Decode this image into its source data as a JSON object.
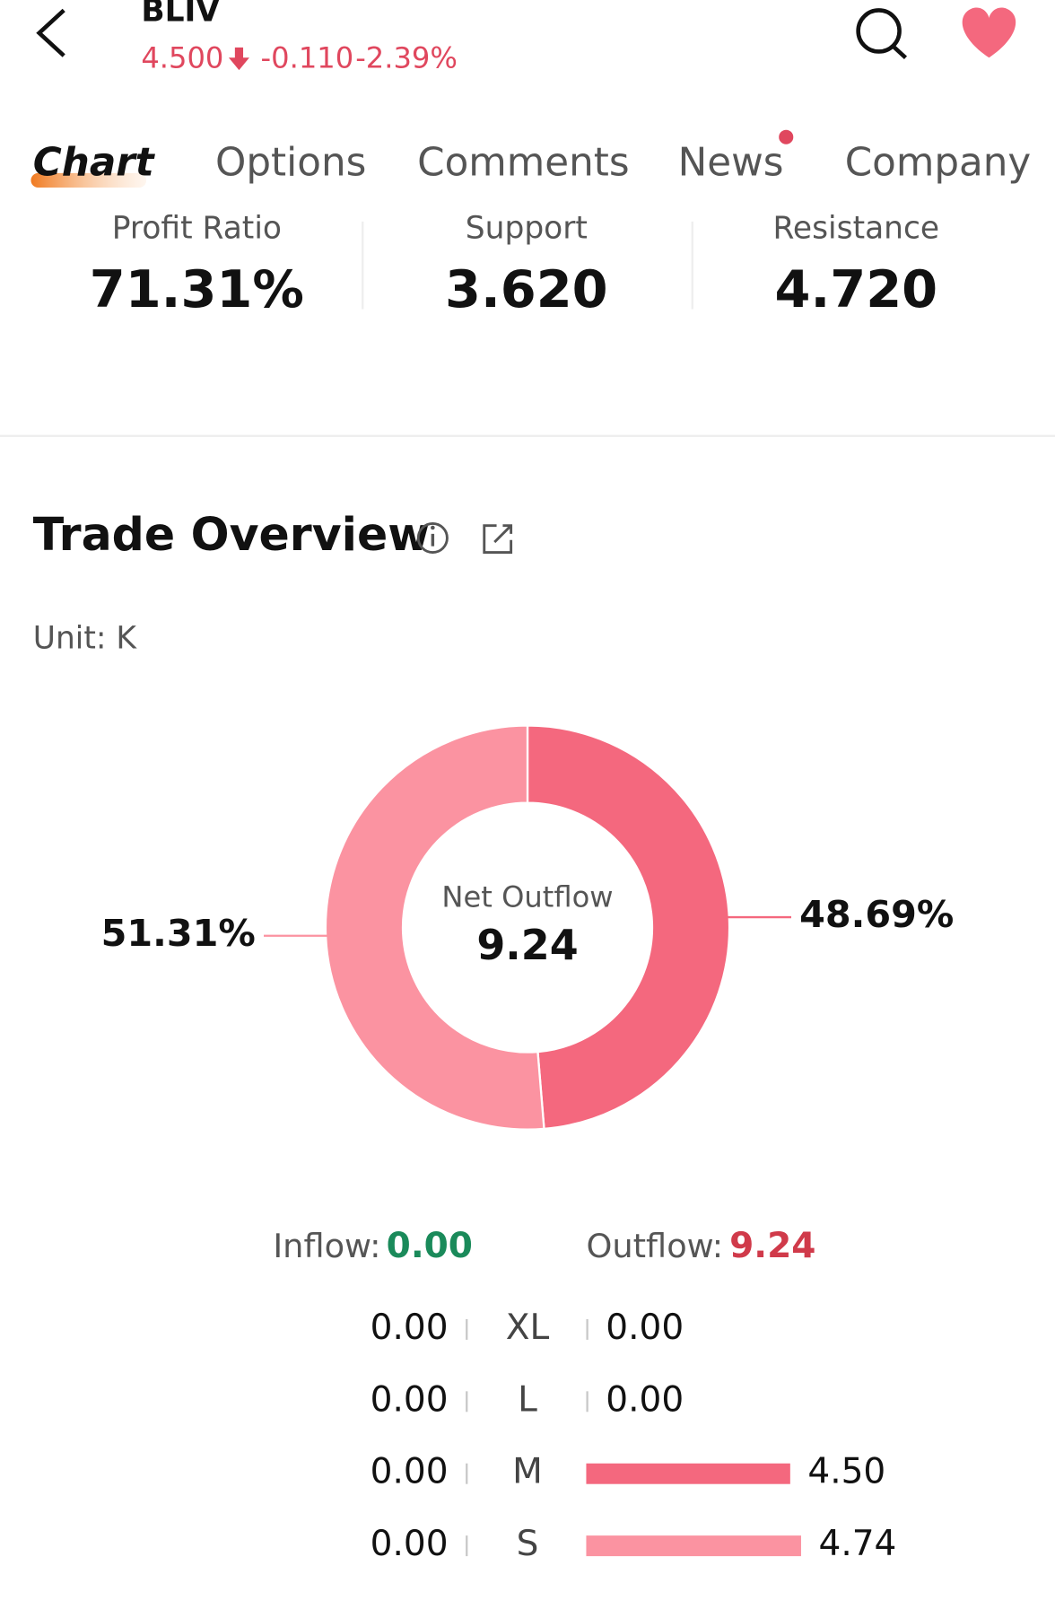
{
  "header": {
    "symbol": "BLIV",
    "price": "4.500",
    "change": "-0.110",
    "change_pct": "-2.39%"
  },
  "tabs": [
    "Chart",
    "Options",
    "Comments",
    "News",
    "Company"
  ],
  "stats": [
    {
      "label": "Profit Ratio",
      "value": "71.31%"
    },
    {
      "label": "Support",
      "value": "3.620"
    },
    {
      "label": "Resistance",
      "value": "4.720"
    }
  ],
  "trade_overview": {
    "title": "Trade Overview",
    "unit": "Unit: K",
    "donut": {
      "type": "pie",
      "center_label": "Net Outflow",
      "center_value": "9.24",
      "slices": [
        {
          "value": 48.69,
          "label": "48.69%",
          "color": "#f4687e"
        },
        {
          "value": 51.31,
          "label": "51.31%",
          "color": "#fb93a1"
        }
      ]
    },
    "inflow_label": "Inflow:",
    "inflow": "0.00",
    "outflow_label": "Outflow:",
    "outflow": "9.24",
    "rows": [
      {
        "size": "XL",
        "inflow": 0,
        "inflow_label": "0.00",
        "outflow": 0,
        "outflow_label": "0.00",
        "color": "#f4687e"
      },
      {
        "size": "L",
        "inflow": 0,
        "inflow_label": "0.00",
        "outflow": 0,
        "outflow_label": "0.00",
        "color": "#f4687e"
      },
      {
        "size": "M",
        "inflow": 0,
        "inflow_label": "0.00",
        "outflow": 4.5,
        "outflow_label": "4.50",
        "color": "#f4687e"
      },
      {
        "size": "S",
        "inflow": 0,
        "inflow_label": "0.00",
        "outflow": 4.74,
        "outflow_label": "4.74",
        "color": "#fb93a1"
      }
    ]
  }
}
